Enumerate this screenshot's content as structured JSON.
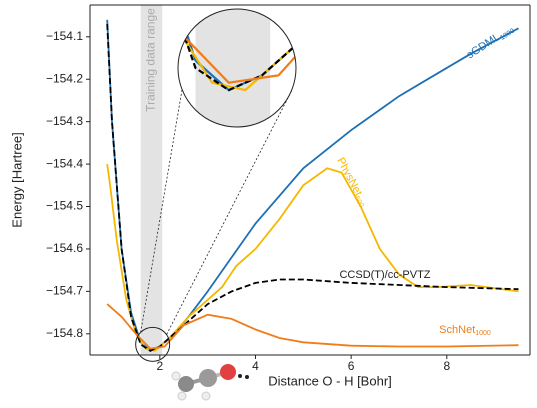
{
  "chart_data": {
    "type": "line",
    "xlabel": "Distance O - H [Bohr]",
    "ylabel": "Energy [Hartree]",
    "xlim": [
      0.54,
      9.74
    ],
    "ylim": [
      -154.025,
      -154.85
    ],
    "xticks": [
      2,
      4,
      6,
      8
    ],
    "yticks": [
      {
        "value": -154.1,
        "label": "−154.1"
      },
      {
        "value": -154.2,
        "label": "−154.2"
      },
      {
        "value": -154.3,
        "label": "−154.3"
      },
      {
        "value": -154.4,
        "label": "−154.4"
      },
      {
        "value": -154.5,
        "label": "−154.5"
      },
      {
        "value": -154.6,
        "label": "−154.6"
      },
      {
        "value": -154.7,
        "label": "−154.7"
      },
      {
        "value": -154.8,
        "label": "−154.8"
      }
    ],
    "shade": {
      "x": [
        1.6,
        2.05
      ],
      "label": "Training data range",
      "color": "#e3e3e3"
    },
    "series": [
      {
        "name": "sGDML",
        "subscript": "1000",
        "color": "#1f6fb4",
        "dash": false,
        "x": [
          0.9,
          1.0,
          1.2,
          1.4,
          1.6,
          1.8,
          2.0,
          2.3,
          2.6,
          3.0,
          3.5,
          4,
          5,
          6,
          7,
          7.6,
          8.5,
          9.5
        ],
        "values": [
          -154.06,
          -154.3,
          -154.6,
          -154.75,
          -154.82,
          -154.84,
          -154.83,
          -154.8,
          -154.76,
          -154.7,
          -154.62,
          -154.54,
          -154.41,
          -154.32,
          -154.24,
          -154.2,
          -154.14,
          -154.08
        ]
      },
      {
        "name": "PhysNet",
        "subscript": "500",
        "color": "#f5b800",
        "dash": false,
        "x": [
          0.9,
          0.95,
          1.1,
          1.3,
          1.5,
          1.7,
          1.9,
          2.2,
          2.6,
          3.0,
          3.3,
          3.6,
          4,
          4.5,
          5,
          5.5,
          5.8,
          6.2,
          6.6,
          7,
          7.4,
          7.8,
          8.5,
          9.5
        ],
        "values": [
          -154.4,
          -154.44,
          -154.58,
          -154.72,
          -154.8,
          -154.835,
          -154.84,
          -154.81,
          -154.76,
          -154.72,
          -154.69,
          -154.64,
          -154.6,
          -154.53,
          -154.45,
          -154.41,
          -154.42,
          -154.5,
          -154.6,
          -154.66,
          -154.69,
          -154.69,
          -154.685,
          -154.7
        ]
      },
      {
        "name": "CCSD(T)/cc-PVTZ",
        "color": "#000000",
        "dash": true,
        "x": [
          0.9,
          1.0,
          1.2,
          1.4,
          1.6,
          1.8,
          2.0,
          2.3,
          2.6,
          3.0,
          3.5,
          4,
          4.5,
          5,
          6,
          7,
          8,
          9.5
        ],
        "values": [
          -154.07,
          -154.3,
          -154.6,
          -154.76,
          -154.825,
          -154.84,
          -154.83,
          -154.8,
          -154.77,
          -154.73,
          -154.7,
          -154.68,
          -154.672,
          -154.672,
          -154.68,
          -154.685,
          -154.69,
          -154.695
        ]
      },
      {
        "name": "SchNet",
        "subscript": "1000",
        "color": "#f07d1a",
        "dash": false,
        "x": [
          0.9,
          1.2,
          1.5,
          1.8,
          2.1,
          2.5,
          3.0,
          3.5,
          4,
          4.5,
          5,
          6,
          7,
          8,
          9.5
        ],
        "values": [
          -154.73,
          -154.76,
          -154.8,
          -154.835,
          -154.83,
          -154.78,
          -154.755,
          -154.765,
          -154.79,
          -154.81,
          -154.82,
          -154.828,
          -154.83,
          -154.83,
          -154.827
        ]
      }
    ]
  }
}
